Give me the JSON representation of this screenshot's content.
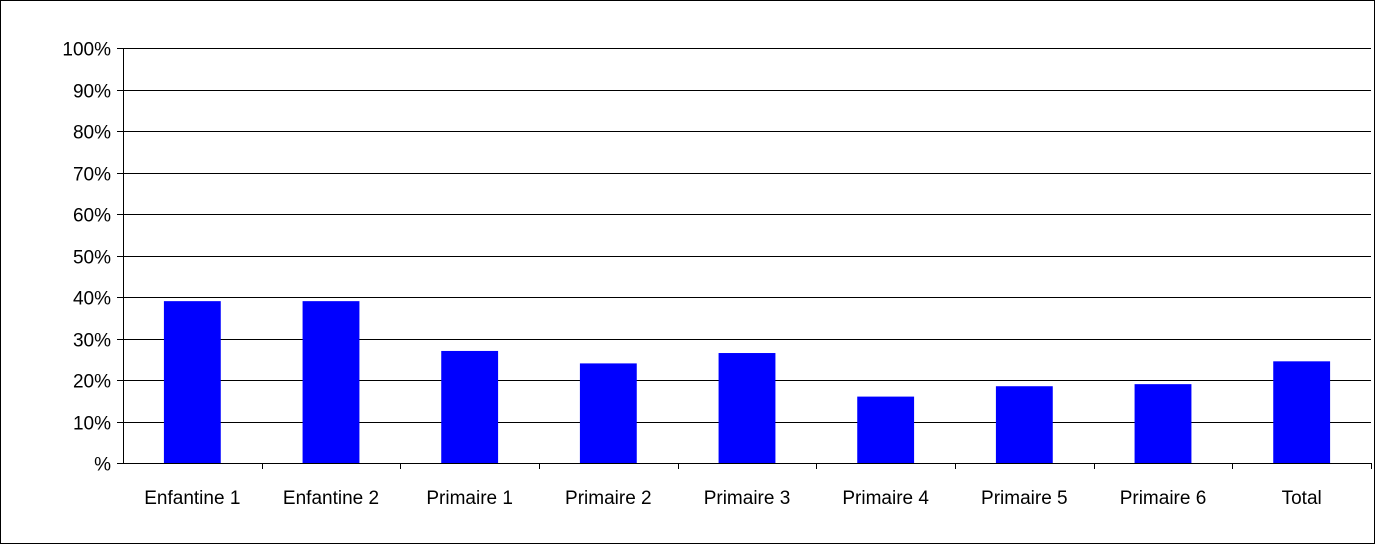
{
  "chart_data": {
    "type": "bar",
    "title": "",
    "xlabel": "",
    "ylabel": "",
    "categories": [
      "Enfantine 1",
      "Enfantine 2",
      "Primaire 1",
      "Primaire 2",
      "Primaire 3",
      "Primaire 4",
      "Primaire 5",
      "Primaire 6",
      "Total"
    ],
    "values": [
      39,
      39,
      27,
      24,
      26.5,
      16,
      18.5,
      19,
      24.5
    ],
    "ylim": [
      0,
      100
    ],
    "yticks": [
      0,
      10,
      20,
      30,
      40,
      50,
      60,
      70,
      80,
      90,
      100
    ],
    "ytick_labels": [
      "%",
      "10%",
      "20%",
      "30%",
      "40%",
      "50%",
      "60%",
      "70%",
      "80%",
      "90%",
      "100%"
    ],
    "grid": true,
    "legend": "none",
    "bar_color": "#0000FF",
    "grid_color": "#000000",
    "axis_color": "#000000"
  }
}
